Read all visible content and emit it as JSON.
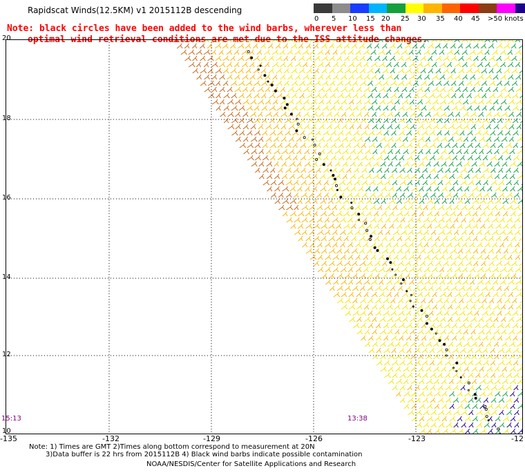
{
  "title": "Rapidscat Winds(12.5KM) v1 2015112B descending",
  "note": {
    "line1": "Note: black circles have been added to the wind barbs, wherever less than",
    "line2": "optimal wind retrieval conditions are met due to the ISS attitude changes."
  },
  "scale": {
    "labels": [
      "0",
      "5",
      "10",
      "15",
      "20",
      "25",
      "30",
      "35",
      "40",
      "45",
      ">50 knots"
    ],
    "colors": [
      "#3a3a3a",
      "#8c8c8c",
      "#1a3cff",
      "#00b4ff",
      "#14a03c",
      "#ffff00",
      "#ffb400",
      "#ff6400",
      "#ff0000",
      "#8c3c14",
      "#ff00ff",
      "#1e008c"
    ]
  },
  "map": {
    "lat_labels": [
      "20",
      "18",
      "16",
      "14",
      "12",
      "10"
    ],
    "lon_labels": [
      "-135",
      "-132",
      "-129",
      "-126",
      "-123",
      "-12"
    ],
    "time_labels": [
      "15:13",
      "13:38"
    ]
  },
  "footer": {
    "line1": "Note: 1) Times are GMT 2)Times along bottom correspond to measurement at 20N",
    "line2": "3)Data buffer is 22 hrs from 2015112B 4) Black wind barbs indicate possible contamination",
    "line3": "NOAA/NESDIS/Center for Satellite Applications and Research"
  }
}
